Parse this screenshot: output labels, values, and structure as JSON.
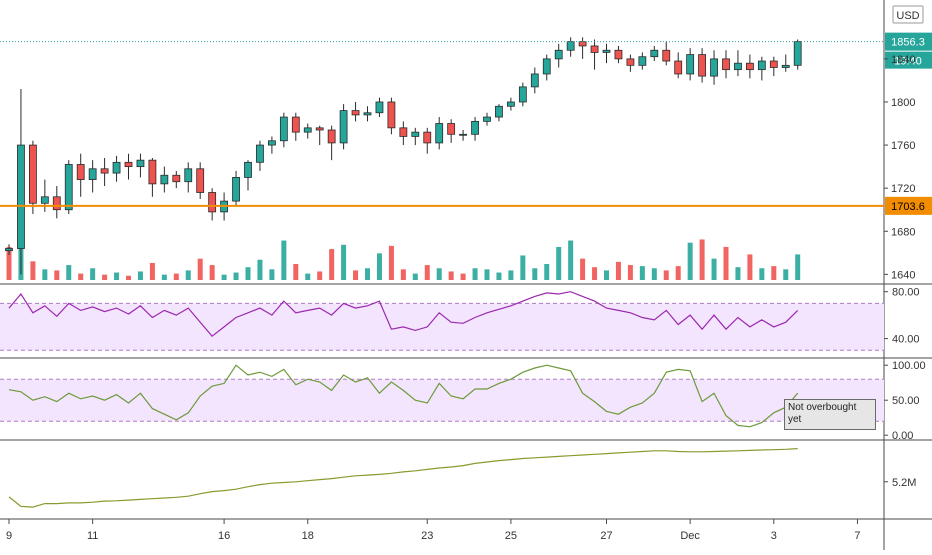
{
  "currency_label": "USD",
  "colors": {
    "up": "#26a69a",
    "down": "#ef5350",
    "horizontal_line": "#f28c00",
    "rsi_line": "#9c27b0",
    "stoch_line": "#6d9a3a",
    "obv_line": "#8b9a2e",
    "band_fill": "#f3e5fd",
    "band_border": "#b07cc6",
    "last_price_dotted": "#26a69a"
  },
  "chart_data": [
    {
      "type": "candlestick",
      "name": "price",
      "yaxis_ticks": [
        1640,
        1680,
        1720,
        1760,
        1800,
        1840
      ],
      "ylim": [
        1632,
        1890
      ],
      "last_price_label": "1856.3",
      "countdown_label": "19:40",
      "horizontal_line": {
        "value": 1703.6,
        "label": "1703.6"
      },
      "ohlc": [
        [
          1662,
          1668,
          1658,
          1664
        ],
        [
          1664,
          1812,
          1640,
          1760
        ],
        [
          1760,
          1764,
          1696,
          1706
        ],
        [
          1706,
          1728,
          1698,
          1712
        ],
        [
          1712,
          1722,
          1692,
          1700
        ],
        [
          1700,
          1746,
          1696,
          1742
        ],
        [
          1742,
          1752,
          1712,
          1728
        ],
        [
          1728,
          1746,
          1716,
          1738
        ],
        [
          1738,
          1748,
          1722,
          1734
        ],
        [
          1734,
          1750,
          1726,
          1744
        ],
        [
          1744,
          1752,
          1728,
          1740
        ],
        [
          1740,
          1752,
          1730,
          1746
        ],
        [
          1746,
          1748,
          1712,
          1724
        ],
        [
          1724,
          1740,
          1716,
          1732
        ],
        [
          1732,
          1736,
          1720,
          1726
        ],
        [
          1726,
          1744,
          1716,
          1738
        ],
        [
          1738,
          1744,
          1710,
          1716
        ],
        [
          1716,
          1720,
          1690,
          1698
        ],
        [
          1698,
          1716,
          1690,
          1708
        ],
        [
          1708,
          1736,
          1704,
          1730
        ],
        [
          1730,
          1746,
          1718,
          1744
        ],
        [
          1744,
          1764,
          1736,
          1760
        ],
        [
          1760,
          1768,
          1752,
          1764
        ],
        [
          1764,
          1790,
          1758,
          1786
        ],
        [
          1786,
          1790,
          1764,
          1772
        ],
        [
          1772,
          1780,
          1766,
          1776
        ],
        [
          1776,
          1778,
          1760,
          1774
        ],
        [
          1774,
          1778,
          1746,
          1762
        ],
        [
          1762,
          1798,
          1756,
          1792
        ],
        [
          1792,
          1800,
          1782,
          1788
        ],
        [
          1788,
          1796,
          1782,
          1790
        ],
        [
          1790,
          1804,
          1786,
          1800
        ],
        [
          1800,
          1804,
          1770,
          1776
        ],
        [
          1776,
          1782,
          1760,
          1768
        ],
        [
          1768,
          1776,
          1760,
          1772
        ],
        [
          1772,
          1776,
          1752,
          1762
        ],
        [
          1762,
          1786,
          1756,
          1780
        ],
        [
          1780,
          1784,
          1762,
          1770
        ],
        [
          1770,
          1774,
          1764,
          1770
        ],
        [
          1770,
          1786,
          1764,
          1782
        ],
        [
          1782,
          1790,
          1778,
          1786
        ],
        [
          1786,
          1798,
          1782,
          1796
        ],
        [
          1796,
          1804,
          1792,
          1800
        ],
        [
          1800,
          1818,
          1796,
          1814
        ],
        [
          1814,
          1832,
          1808,
          1826
        ],
        [
          1826,
          1844,
          1820,
          1840
        ],
        [
          1840,
          1854,
          1832,
          1848
        ],
        [
          1848,
          1860,
          1842,
          1856
        ],
        [
          1856,
          1860,
          1840,
          1852
        ],
        [
          1852,
          1858,
          1830,
          1846
        ],
        [
          1846,
          1854,
          1836,
          1848
        ],
        [
          1848,
          1852,
          1836,
          1840
        ],
        [
          1840,
          1844,
          1828,
          1834
        ],
        [
          1834,
          1846,
          1830,
          1842
        ],
        [
          1842,
          1852,
          1838,
          1848
        ],
        [
          1848,
          1856,
          1834,
          1838
        ],
        [
          1838,
          1846,
          1822,
          1826
        ],
        [
          1826,
          1850,
          1820,
          1844
        ],
        [
          1844,
          1850,
          1818,
          1824
        ],
        [
          1824,
          1848,
          1816,
          1840
        ],
        [
          1840,
          1848,
          1822,
          1830
        ],
        [
          1830,
          1848,
          1824,
          1836
        ],
        [
          1836,
          1844,
          1822,
          1830
        ],
        [
          1830,
          1842,
          1820,
          1838
        ],
        [
          1838,
          1842,
          1824,
          1832
        ],
        [
          1832,
          1844,
          1828,
          1834
        ],
        [
          1834,
          1858,
          1830,
          1856
        ]
      ],
      "volume": [
        62,
        90,
        35,
        20,
        18,
        28,
        12,
        22,
        10,
        14,
        8,
        16,
        32,
        10,
        12,
        18,
        40,
        28,
        10,
        14,
        24,
        38,
        20,
        74,
        30,
        12,
        16,
        58,
        66,
        18,
        22,
        50,
        64,
        20,
        12,
        28,
        22,
        16,
        12,
        22,
        20,
        14,
        18,
        46,
        22,
        30,
        62,
        74,
        40,
        24,
        18,
        34,
        28,
        26,
        22,
        18,
        26,
        70,
        76,
        40,
        62,
        24,
        48,
        22,
        26,
        20,
        48
      ],
      "volume_up": [
        false,
        true,
        false,
        true,
        false,
        true,
        false,
        true,
        false,
        true,
        false,
        true,
        false,
        true,
        false,
        true,
        false,
        false,
        true,
        true,
        true,
        true,
        true,
        true,
        false,
        true,
        false,
        false,
        true,
        false,
        true,
        true,
        false,
        false,
        true,
        false,
        true,
        false,
        false,
        true,
        true,
        true,
        true,
        true,
        true,
        true,
        true,
        true,
        false,
        false,
        true,
        false,
        false,
        true,
        true,
        false,
        false,
        true,
        false,
        true,
        false,
        true,
        false,
        true,
        false,
        true,
        true
      ]
    },
    {
      "type": "line",
      "name": "rsi",
      "yaxis_ticks": [
        40,
        80
      ],
      "tick_labels": [
        "40.00",
        "80.00"
      ],
      "ylim": [
        26,
        84
      ],
      "band": [
        30,
        70
      ],
      "values": [
        66,
        78,
        62,
        68,
        59,
        70,
        64,
        67,
        63,
        66,
        61,
        68,
        58,
        64,
        60,
        66,
        54,
        42,
        50,
        58,
        62,
        66,
        60,
        72,
        62,
        64,
        66,
        60,
        70,
        66,
        68,
        72,
        48,
        50,
        47,
        50,
        62,
        54,
        53,
        58,
        62,
        65,
        68,
        72,
        76,
        79,
        78,
        80,
        76,
        72,
        66,
        64,
        62,
        58,
        56,
        64,
        52,
        60,
        48,
        60,
        48,
        58,
        50,
        56,
        50,
        54,
        64
      ]
    },
    {
      "type": "line",
      "name": "stochastic",
      "yaxis_ticks": [
        0,
        50,
        100
      ],
      "tick_labels": [
        "0.00",
        "50.00",
        "100.00"
      ],
      "ylim": [
        -4,
        106
      ],
      "band": [
        20,
        80
      ],
      "annotation": "Not overbought yet",
      "values": [
        65,
        62,
        50,
        55,
        48,
        60,
        52,
        56,
        50,
        58,
        46,
        60,
        38,
        30,
        22,
        32,
        56,
        70,
        74,
        100,
        86,
        90,
        84,
        94,
        72,
        80,
        76,
        64,
        86,
        76,
        82,
        60,
        76,
        64,
        50,
        46,
        74,
        56,
        52,
        66,
        66,
        74,
        80,
        90,
        96,
        100,
        96,
        92,
        60,
        48,
        34,
        30,
        40,
        46,
        60,
        90,
        94,
        92,
        48,
        60,
        28,
        14,
        12,
        18,
        32,
        40,
        60
      ]
    },
    {
      "type": "line",
      "name": "obv",
      "yaxis_ticks": [
        5200000
      ],
      "tick_labels": [
        "5.2M"
      ],
      "ylim": [
        4200000,
        6300000
      ],
      "values": [
        4770000,
        4500000,
        4480000,
        4580000,
        4580000,
        4600000,
        4600000,
        4620000,
        4650000,
        4660000,
        4680000,
        4700000,
        4720000,
        4740000,
        4760000,
        4790000,
        4860000,
        4920000,
        4950000,
        4990000,
        5060000,
        5120000,
        5160000,
        5180000,
        5200000,
        5230000,
        5260000,
        5290000,
        5330000,
        5370000,
        5390000,
        5410000,
        5440000,
        5480000,
        5510000,
        5550000,
        5590000,
        5620000,
        5660000,
        5720000,
        5760000,
        5800000,
        5830000,
        5860000,
        5880000,
        5900000,
        5920000,
        5940000,
        5960000,
        5980000,
        6000000,
        6020000,
        6040000,
        6060000,
        6080000,
        6080000,
        6060000,
        6050000,
        6050000,
        6060000,
        6070000,
        6080000,
        6090000,
        6100000,
        6110000,
        6120000,
        6140000
      ]
    }
  ],
  "xaxis": {
    "tick_labels": [
      "9",
      "11",
      "16",
      "18",
      "23",
      "25",
      "27",
      "Dec",
      "3",
      "7"
    ],
    "tick_index": [
      0,
      7,
      18,
      25,
      35,
      42,
      50,
      57,
      64,
      71
    ]
  }
}
